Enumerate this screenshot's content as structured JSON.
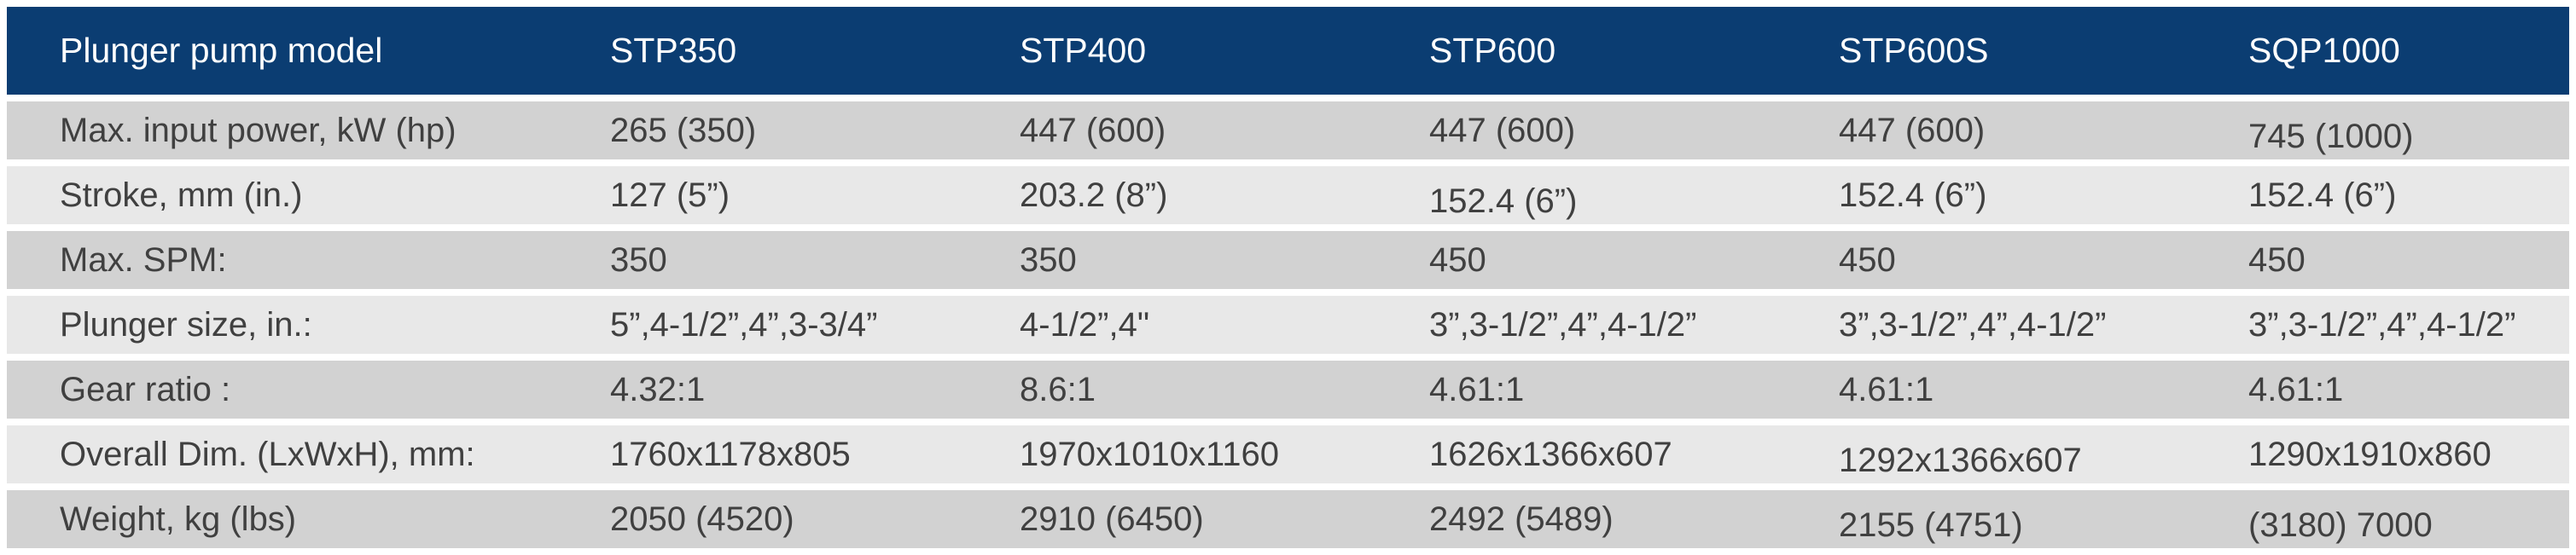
{
  "table": {
    "columns": [
      "Plunger pump model",
      "STP350",
      "STP400",
      "STP600",
      "STP600S",
      "SQP1000"
    ],
    "rows": [
      {
        "label": "Max. input power, kW (hp)",
        "values": [
          "265 (350)",
          "447 (600)",
          "447 (600)",
          "447 (600)",
          "745 (1000)"
        ]
      },
      {
        "label": "Stroke, mm (in.)",
        "values": [
          "127 (5”)",
          "203.2 (8”)",
          "152.4 (6”)",
          "152.4 (6”)",
          "152.4 (6”)"
        ]
      },
      {
        "label": "Max. SPM:",
        "values": [
          "350",
          "350",
          "450",
          "450",
          "450"
        ]
      },
      {
        "label": "Plunger size, in.:",
        "values": [
          "5”,4-1/2”,4”,3-3/4”",
          "4-1/2”,4\"",
          "3”,3-1/2”,4”,4-1/2”",
          "3”,3-1/2”,4”,4-1/2”",
          "3”,3-1/2”,4”,4-1/2”"
        ]
      },
      {
        "label": "Gear ratio :",
        "values": [
          "4.32:1",
          "8.6:1",
          "4.61:1",
          "4.61:1",
          "4.61:1"
        ]
      },
      {
        "label": "Overall Dim. (LxWxH), mm:",
        "values": [
          "1760x1178x805",
          "1970x1010x1160",
          "1626x1366x607",
          "1292x1366x607",
          "1290x1910x860"
        ]
      },
      {
        "label": "Weight, kg (lbs)",
        "values": [
          "2050 (4520)",
          "2910 (6450)",
          "2492 (5489)",
          "2155 (4751)",
          "(3180) 7000"
        ]
      }
    ]
  },
  "colors": {
    "header_bg": "#0b3d72",
    "header_text": "#ffffff",
    "row_dark": "#d2d2d2",
    "row_light": "#e8e8e8",
    "text": "#404040"
  }
}
